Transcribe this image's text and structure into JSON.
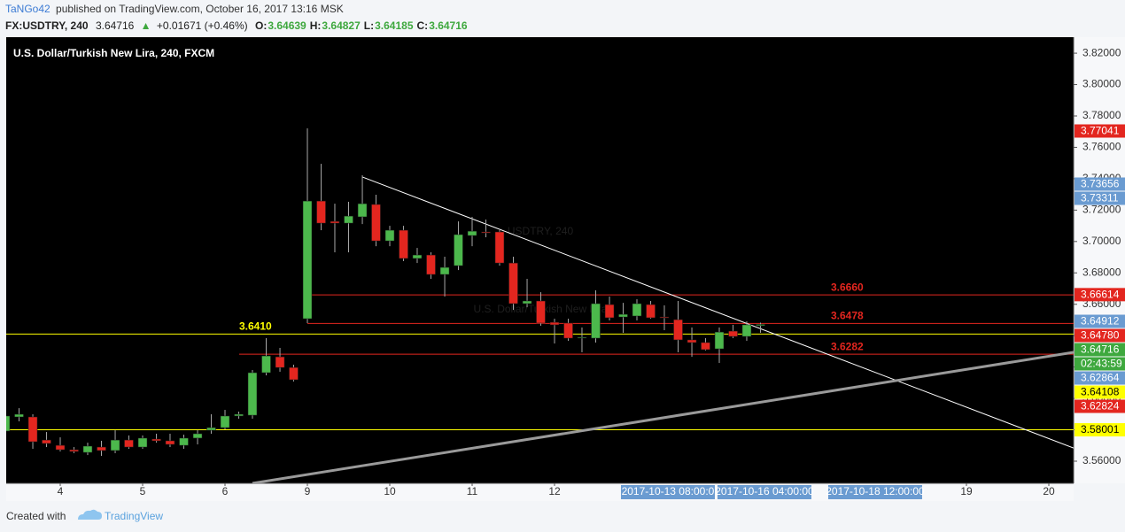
{
  "header": {
    "author": "TaNGo42",
    "published": "published on TradingView.com, October 16, 2017 13:16 MSK",
    "symbol": "FX:USDTRY, 240",
    "last": "3.64716",
    "arrow": "▲",
    "change": "+0.01671 (+0.46%)",
    "ohlc": [
      {
        "key": "O:",
        "value": "3.64639"
      },
      {
        "key": "H:",
        "value": "3.64827"
      },
      {
        "key": "L:",
        "value": "3.64185"
      },
      {
        "key": "C:",
        "value": "3.64716"
      }
    ]
  },
  "footer": {
    "created_with": "Created with",
    "brand": "TradingView"
  },
  "chart_data": {
    "type": "candlestick",
    "title": "U.S. Dollar/Turkish New Lira, 240, FXCM",
    "watermark": [
      "USDTRY, 240",
      "U.S. Dollar/Turkish New Lira"
    ],
    "up_color": "#4cb84c",
    "down_color": "#e3261f",
    "wick_color": "#a8a8a8",
    "x": [
      -0.667,
      -0.5,
      -0.333,
      -0.167,
      0,
      0.167,
      0.333,
      0.5,
      0.667,
      0.833,
      1,
      1.167,
      1.333,
      1.5,
      1.667,
      1.833,
      2,
      2.167,
      2.333,
      2.5,
      2.667,
      2.833,
      3,
      3.167,
      3.333,
      3.5,
      3.667,
      3.833,
      4,
      4.167,
      4.333,
      4.5,
      4.667,
      4.833,
      5,
      5.167,
      5.333,
      5.5,
      5.667,
      5.833,
      6,
      6.167,
      6.333,
      6.5,
      6.667,
      6.833,
      7,
      7.167,
      7.333,
      7.5,
      7.667,
      7.833,
      8,
      8.167,
      8.333,
      8.5
    ],
    "open": [
      3.5792,
      3.5882,
      3.5882,
      3.5735,
      3.5701,
      3.5673,
      3.5656,
      3.569,
      3.5668,
      3.5735,
      3.569,
      3.5741,
      3.573,
      3.5701,
      3.5747,
      3.5797,
      3.5814,
      3.5888,
      3.5893,
      3.6164,
      3.6265,
      3.6197,
      3.6508,
      3.7258,
      3.7128,
      3.7117,
      3.7157,
      3.7236,
      3.7004,
      3.7072,
      3.6892,
      3.6914,
      3.679,
      3.6846,
      3.7038,
      3.7061,
      3.7061,
      3.6863,
      3.6604,
      3.6621,
      3.6485,
      3.648,
      3.639,
      3.6384,
      3.6598,
      3.6519,
      3.6525,
      3.6598,
      3.6519,
      3.6502,
      3.6373,
      3.6356,
      3.6316,
      3.6429,
      3.6395,
      3.64639
    ],
    "high": [
      3.5916,
      3.5938,
      3.5899,
      3.5786,
      3.5752,
      3.569,
      3.5718,
      3.573,
      3.5797,
      3.5764,
      3.5764,
      3.5775,
      3.5775,
      3.5769,
      3.5797,
      3.5899,
      3.5927,
      3.5916,
      3.6181,
      3.6384,
      3.6322,
      3.6215,
      3.7721,
      3.7495,
      3.7241,
      3.7253,
      3.7422,
      3.7298,
      3.71,
      3.71,
      3.6959,
      3.6931,
      3.6903,
      3.7128,
      3.7157,
      3.714,
      3.7072,
      3.6903,
      3.6762,
      3.6677,
      3.6508,
      3.6508,
      3.6452,
      3.6689,
      3.6649,
      3.6609,
      3.6632,
      3.6621,
      3.6593,
      3.6621,
      3.6452,
      3.6384,
      3.6452,
      3.6469,
      3.6491,
      3.64827
    ],
    "low": [
      3.5775,
      3.5854,
      3.5679,
      3.569,
      3.5662,
      3.5651,
      3.5639,
      3.5634,
      3.5651,
      3.5679,
      3.5679,
      3.5718,
      3.569,
      3.5679,
      3.5707,
      3.5775,
      3.5803,
      3.5871,
      3.5871,
      3.6147,
      3.617,
      3.6108,
      3.648,
      3.7072,
      3.6931,
      3.6931,
      3.7111,
      3.697,
      3.697,
      3.6875,
      3.6863,
      3.6762,
      3.6649,
      3.6818,
      3.697,
      3.7027,
      3.6846,
      3.6564,
      3.6581,
      3.6463,
      3.635,
      3.6367,
      3.6294,
      3.6356,
      3.6497,
      3.6418,
      3.6497,
      3.6508,
      3.6435,
      3.6294,
      3.6265,
      3.6305,
      3.6226,
      3.6384,
      3.6367,
      3.64185
    ],
    "close": [
      3.5888,
      3.5899,
      3.5724,
      3.5713,
      3.5673,
      3.5662,
      3.5696,
      3.5668,
      3.5735,
      3.569,
      3.5747,
      3.573,
      3.5707,
      3.5747,
      3.5775,
      3.5814,
      3.5888,
      3.5899,
      3.6164,
      3.6271,
      3.6197,
      3.6119,
      3.7258,
      3.7117,
      3.7117,
      3.7162,
      3.7241,
      3.7004,
      3.7072,
      3.6892,
      3.6914,
      3.679,
      3.6835,
      3.7044,
      3.7066,
      3.7055,
      3.6863,
      3.6604,
      3.6621,
      3.648,
      3.6469,
      3.6384,
      3.639,
      3.6604,
      3.6514,
      3.6536,
      3.6604,
      3.6514,
      3.6514,
      3.6373,
      3.6356,
      3.6311,
      3.6423,
      3.6395,
      3.6469,
      3.64716
    ],
    "xlim": [
      -0.656,
      12.301
    ],
    "ylim": [
      3.5459,
      3.8302
    ],
    "xticks": [
      {
        "value": 0,
        "label": "4"
      },
      {
        "value": 1,
        "label": "5"
      },
      {
        "value": 2,
        "label": "6"
      },
      {
        "value": 3,
        "label": "9"
      },
      {
        "value": 4,
        "label": "10"
      },
      {
        "value": 5,
        "label": "11"
      },
      {
        "value": 6,
        "label": "12"
      },
      {
        "value": 11,
        "label": "19"
      },
      {
        "value": 12,
        "label": "20"
      }
    ],
    "x_date_labels": [
      {
        "value": 7.376,
        "label": "2017-10-13 08:00:0"
      },
      {
        "value": 8.548,
        "label": "2017-10-16 04:00:00"
      },
      {
        "value": 9.892,
        "label": "2017-10-18 12:00:00"
      }
    ],
    "yticks": [
      {
        "value": 3.56,
        "label": "3.56000"
      },
      {
        "value": 3.58,
        "label": "3.58000"
      },
      {
        "value": 3.6,
        "label": "3.60000"
      },
      {
        "value": 3.62,
        "label": "3.62000"
      },
      {
        "value": 3.64,
        "label": "3.64000"
      },
      {
        "value": 3.66,
        "label": "3.66000"
      },
      {
        "value": 3.68,
        "label": "3.68000"
      },
      {
        "value": 3.7,
        "label": "3.70000"
      },
      {
        "value": 3.72,
        "label": "3.72000"
      },
      {
        "value": 3.74,
        "label": "3.74000"
      },
      {
        "value": 3.76,
        "label": "3.76000"
      },
      {
        "value": 3.78,
        "label": "3.78000"
      },
      {
        "value": 3.8,
        "label": "3.80000"
      },
      {
        "value": 3.82,
        "label": "3.82000"
      }
    ],
    "hlines": [
      {
        "value": 3.641,
        "label": "3.6410",
        "color": "#ffff00"
      },
      {
        "value": 3.666,
        "label": "3.6660",
        "color": "#e3261f",
        "x0": 3
      },
      {
        "value": 3.6478,
        "label": "3.6478",
        "color": "#e3261f",
        "x0": 3
      },
      {
        "value": 3.6282,
        "label": "3.6282",
        "color": "#e3261f",
        "x0": 2.172
      },
      {
        "value": 3.58001,
        "color": "#ffff00"
      }
    ],
    "trendlines": [
      {
        "x": [
          3.667,
          12.301
        ],
        "y": [
          3.7411,
          3.5684
        ],
        "color": "#ffffff",
        "width": 1
      },
      {
        "x": [
          2.333,
          12.301
        ],
        "y": [
          3.5459,
          3.6294
        ],
        "color": "#9a9a9a",
        "width": 3
      }
    ],
    "badges": [
      {
        "value": 3.77041,
        "label": "3.77041",
        "color": "#e3261f"
      },
      {
        "value": 3.73656,
        "label": "3.73656",
        "color": "#6a9bd1"
      },
      {
        "value": 3.73311,
        "label": "3.73311",
        "color": "#6a9bd1"
      },
      {
        "value": 3.66614,
        "label": "3.66614",
        "color": "#e3261f"
      },
      {
        "value": 3.64912,
        "label": "3.64912",
        "color": "#6a9bd1"
      },
      {
        "value": 3.6478,
        "label": "3.64780",
        "color": "#e3261f"
      },
      {
        "value": 3.64716,
        "label": "3.64716",
        "color": "#3ea83e"
      },
      {
        "label": "02:43:59",
        "color": "#3ea83e"
      },
      {
        "value": 3.62864,
        "label": "3.62864",
        "color": "#6a9bd1"
      },
      {
        "value": 3.64108,
        "label": "3.64108",
        "color": "#ffff00"
      },
      {
        "value": 3.62824,
        "label": "3.62824",
        "color": "#e3261f"
      },
      {
        "value": 3.58001,
        "label": "3.58001",
        "color": "#ffff00"
      }
    ]
  }
}
